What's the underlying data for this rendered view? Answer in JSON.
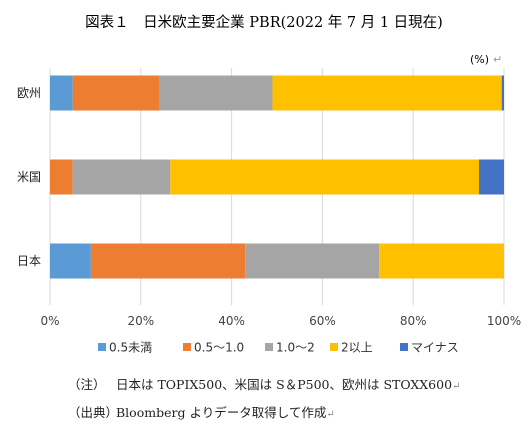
{
  "chart_data": {
    "type": "bar",
    "orientation": "horizontal",
    "stacked": true,
    "title": "図表１　日米欧主要企業 PBR(2022 年 7 月 1 日現在)",
    "unit_label": "(%)",
    "unit_mark": "↵",
    "categories": [
      "欧州",
      "米国",
      "日本"
    ],
    "xlim": [
      0,
      100
    ],
    "x_ticks": [
      "0%",
      "20%",
      "40%",
      "60%",
      "80%",
      "100%"
    ],
    "grid": true,
    "legend_position": "bottom",
    "series": [
      {
        "name": "0.5未満",
        "color": "#5b9bd5",
        "values": [
          5,
          0,
          9
        ]
      },
      {
        "name": "0.5～1.0",
        "color": "#ed7d31",
        "values": [
          19,
          5,
          34
        ]
      },
      {
        "name": "1.0～2",
        "color": "#a5a5a5",
        "values": [
          25,
          21.5,
          29.5
        ]
      },
      {
        "name": "2以上",
        "color": "#ffc000",
        "values": [
          50.5,
          68,
          27.5
        ]
      },
      {
        "name": "マイナス",
        "color": "#4472c4",
        "values": [
          0.5,
          5.5,
          0
        ]
      }
    ]
  },
  "notes": [
    {
      "key": "（注）",
      "text": "日本は TOPIX500、米国は S＆P500、欧州は STOXX600",
      "mark": "↵"
    },
    {
      "key": "（出典）",
      "text": "Bloomberg よりデータ取得して作成",
      "mark": "↵"
    }
  ]
}
